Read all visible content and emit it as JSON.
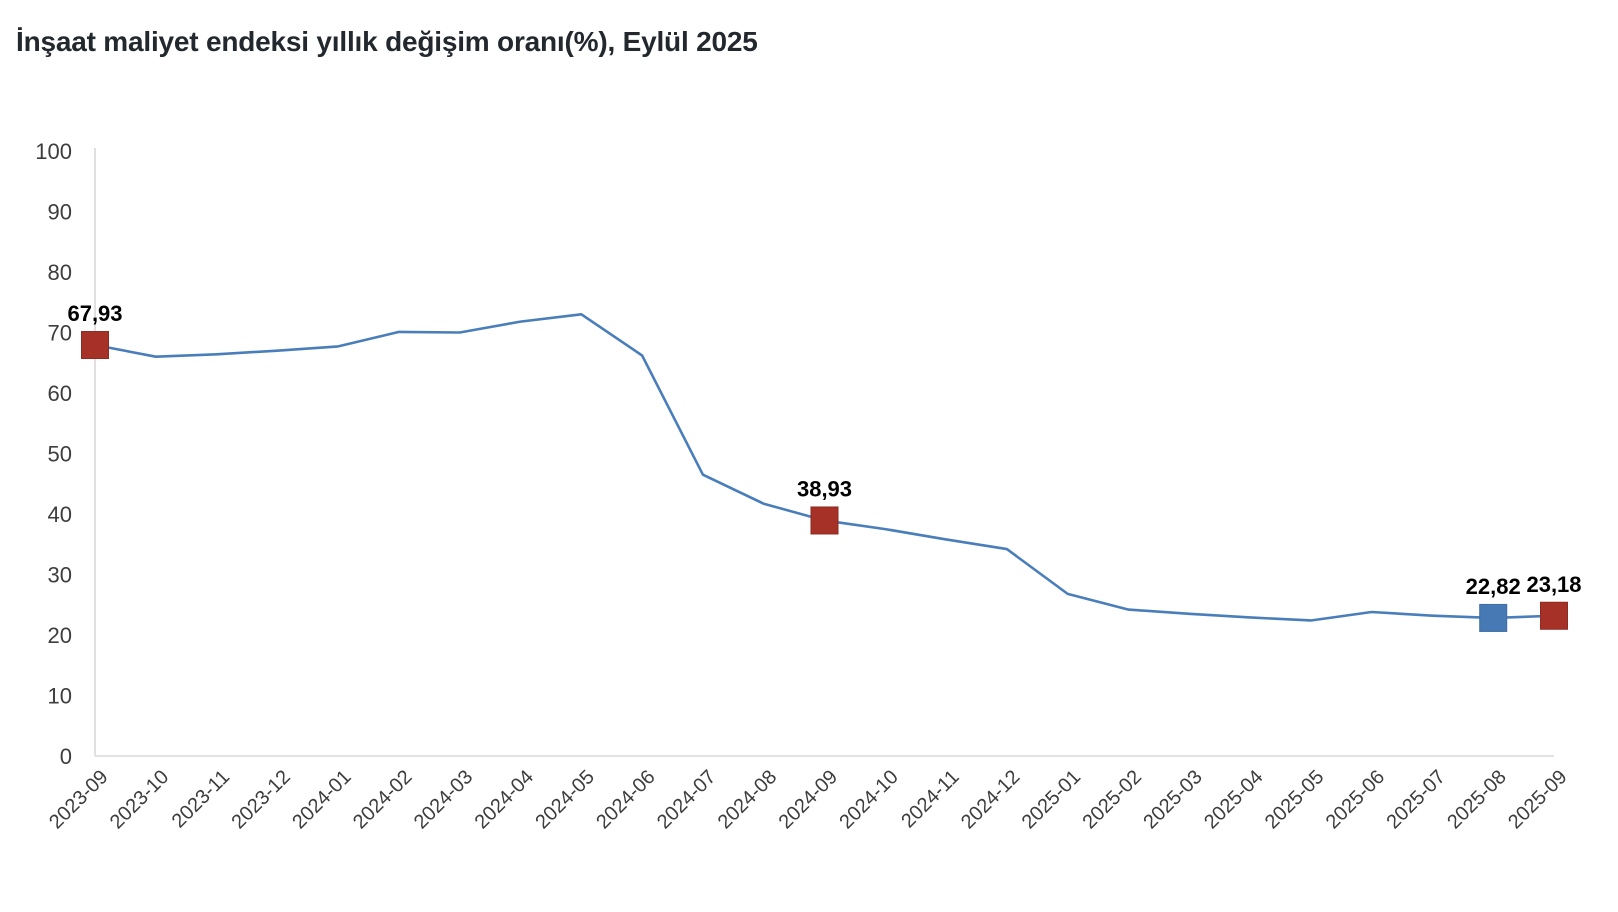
{
  "colors": {
    "background": "#FFFFFF",
    "title_text": "#23282E",
    "axis_line": "#D9D9D9",
    "tick_text": "#3D3D3D",
    "line": "#4A7EBB",
    "marker_red": "#A53127",
    "marker_red_border": "#8E2A22",
    "marker_blue": "#4779B5",
    "marker_blue_border": "#3E6DA3",
    "point_label_text": "#000000"
  },
  "chart_data": {
    "type": "line",
    "title": "İnşaat maliyet endeksi yıllık değişim oranı(%), Eylül 2025",
    "xlabel": "",
    "ylabel": "",
    "ylim": [
      0,
      100
    ],
    "ytick_step": 10,
    "grid": false,
    "legend": "none",
    "x_tick_rotation": -45,
    "decimal_separator": ",",
    "categories": [
      "2023-09",
      "2023-10",
      "2023-11",
      "2023-12",
      "2024-01",
      "2024-02",
      "2024-03",
      "2024-04",
      "2024-05",
      "2024-06",
      "2024-07",
      "2024-08",
      "2024-09",
      "2024-10",
      "2024-11",
      "2024-12",
      "2025-01",
      "2025-02",
      "2025-03",
      "2025-04",
      "2025-05",
      "2025-06",
      "2025-07",
      "2025-08",
      "2025-09"
    ],
    "values": [
      67.93,
      66.0,
      66.4,
      67.0,
      67.7,
      70.1,
      70.0,
      71.8,
      73.0,
      66.2,
      46.5,
      41.7,
      38.93,
      37.5,
      35.8,
      34.2,
      26.8,
      24.2,
      23.5,
      22.9,
      22.4,
      23.8,
      23.2,
      22.82,
      23.18
    ],
    "highlighted_points": [
      {
        "category": "2023-09",
        "value": 67.93,
        "label": "67,93",
        "marker": "red"
      },
      {
        "category": "2024-09",
        "value": 38.93,
        "label": "38,93",
        "marker": "red"
      },
      {
        "category": "2025-08",
        "value": 22.82,
        "label": "22,82",
        "marker": "blue"
      },
      {
        "category": "2025-09",
        "value": 23.18,
        "label": "23,18",
        "marker": "red"
      }
    ]
  }
}
